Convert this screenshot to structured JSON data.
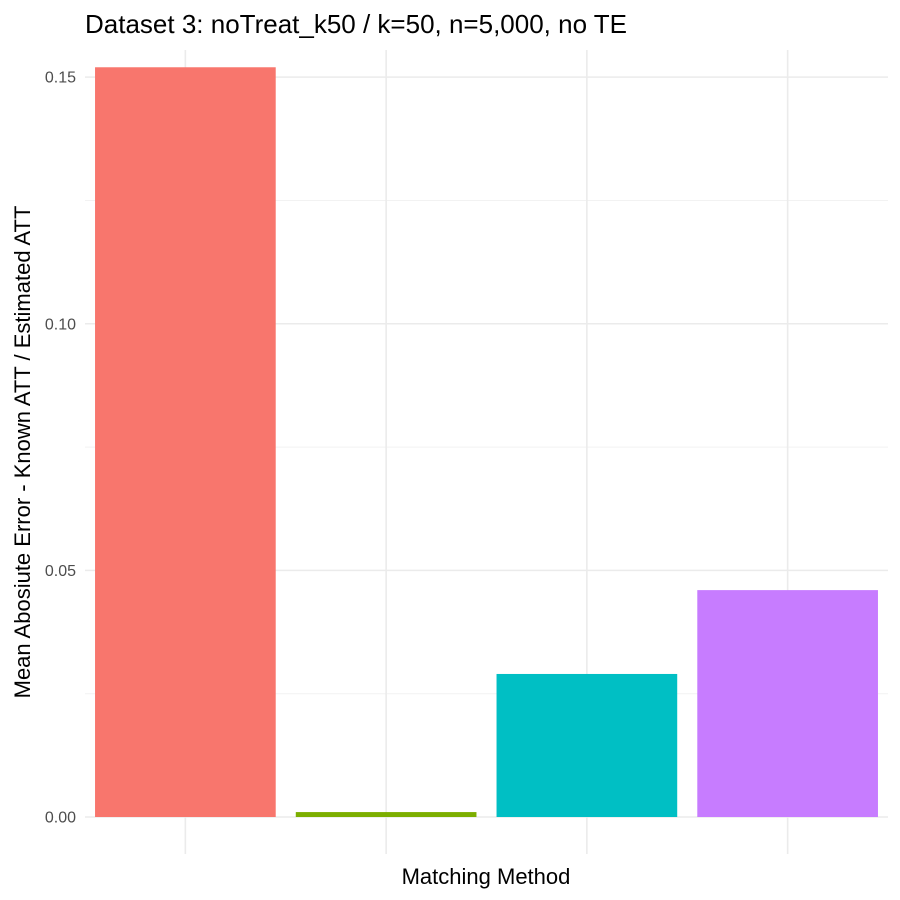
{
  "chart_data": {
    "type": "bar",
    "title": "Dataset 3: noTreat_k50 / k=50, n=5,000, no TE",
    "xlabel": "Matching Method",
    "ylabel": "Mean Abosiute Error - Known ATT / Estimated ATT",
    "categories": [
      "",
      "",
      "",
      ""
    ],
    "values": [
      0.152,
      0.001,
      0.029,
      0.046
    ],
    "colors": [
      "#F8766D",
      "#7CAE00",
      "#00BFC4",
      "#C77CFF"
    ],
    "ylim": [
      -0.0075,
      0.1555
    ],
    "yticks": [
      0.0,
      0.05,
      0.1,
      0.15
    ],
    "ytick_labels": [
      "0.00",
      "0.05",
      "0.10",
      "0.15"
    ],
    "grid": true,
    "legend": "none"
  }
}
